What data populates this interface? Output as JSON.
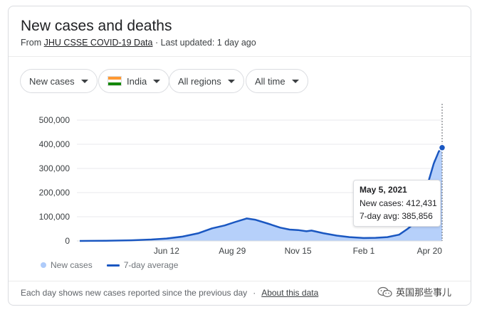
{
  "header": {
    "title": "New cases and deaths",
    "source_prefix": "From ",
    "source_link": "JHU CSSE COVID-19 Data",
    "updated": " · Last updated: 1 day ago"
  },
  "filters": {
    "metric": "New cases",
    "country": "India",
    "region": "All regions",
    "time": "All time"
  },
  "flag_colors": [
    "#ff9933",
    "#ffffff",
    "#138808"
  ],
  "tooltip": {
    "date": "May 5, 2021",
    "cases_label": "New cases: 412,431",
    "avg_label": "7-day avg: 385,856"
  },
  "legend": {
    "cases": "New cases",
    "average": "7-day average",
    "cases_color": "#aecbfa",
    "average_color": "#1a57c1"
  },
  "footer": {
    "note": "Each day shows new cases reported since the previous day",
    "separator": "·",
    "about": "About this data"
  },
  "watermark": "英国那些事儿",
  "chart_data": {
    "type": "area",
    "title": "",
    "xlabel": "",
    "ylabel": "",
    "ylim": [
      0,
      500000
    ],
    "yticks": [
      "500,000",
      "400,000",
      "300,000",
      "200,000",
      "100,000",
      "0"
    ],
    "ytick_values": [
      500000,
      400000,
      300000,
      200000,
      100000,
      0
    ],
    "xticks": [
      "Jun 12",
      "Aug 29",
      "Nov 15",
      "Feb 1",
      "Apr 20"
    ],
    "xtick_dates": [
      "2020-06-12",
      "2020-08-29",
      "2020-11-15",
      "2021-02-01",
      "2021-04-20"
    ],
    "grid": true,
    "highlight": {
      "date": "2021-05-05",
      "new_cases": 412431,
      "avg": 385856
    },
    "series": [
      {
        "name": "7-day average",
        "points": [
          [
            "2020-03-01",
            0
          ],
          [
            "2020-04-01",
            500
          ],
          [
            "2020-05-01",
            2500
          ],
          [
            "2020-05-25",
            6000
          ],
          [
            "2020-06-12",
            10000
          ],
          [
            "2020-07-01",
            18000
          ],
          [
            "2020-07-20",
            32000
          ],
          [
            "2020-08-05",
            52000
          ],
          [
            "2020-08-20",
            64000
          ],
          [
            "2020-09-01",
            78000
          ],
          [
            "2020-09-15",
            93000
          ],
          [
            "2020-09-25",
            88000
          ],
          [
            "2020-10-10",
            72000
          ],
          [
            "2020-10-25",
            55000
          ],
          [
            "2020-11-05",
            47000
          ],
          [
            "2020-11-15",
            45000
          ],
          [
            "2020-11-25",
            40000
          ],
          [
            "2020-12-01",
            43000
          ],
          [
            "2020-12-15",
            32000
          ],
          [
            "2020-12-31",
            22000
          ],
          [
            "2021-01-15",
            16000
          ],
          [
            "2021-02-01",
            12000
          ],
          [
            "2021-02-15",
            13000
          ],
          [
            "2021-03-01",
            16000
          ],
          [
            "2021-03-15",
            26000
          ],
          [
            "2021-03-25",
            50000
          ],
          [
            "2021-04-01",
            70000
          ],
          [
            "2021-04-10",
            140000
          ],
          [
            "2021-04-15",
            200000
          ],
          [
            "2021-04-20",
            260000
          ],
          [
            "2021-04-25",
            320000
          ],
          [
            "2021-05-01",
            370000
          ],
          [
            "2021-05-05",
            385856
          ]
        ]
      }
    ]
  }
}
